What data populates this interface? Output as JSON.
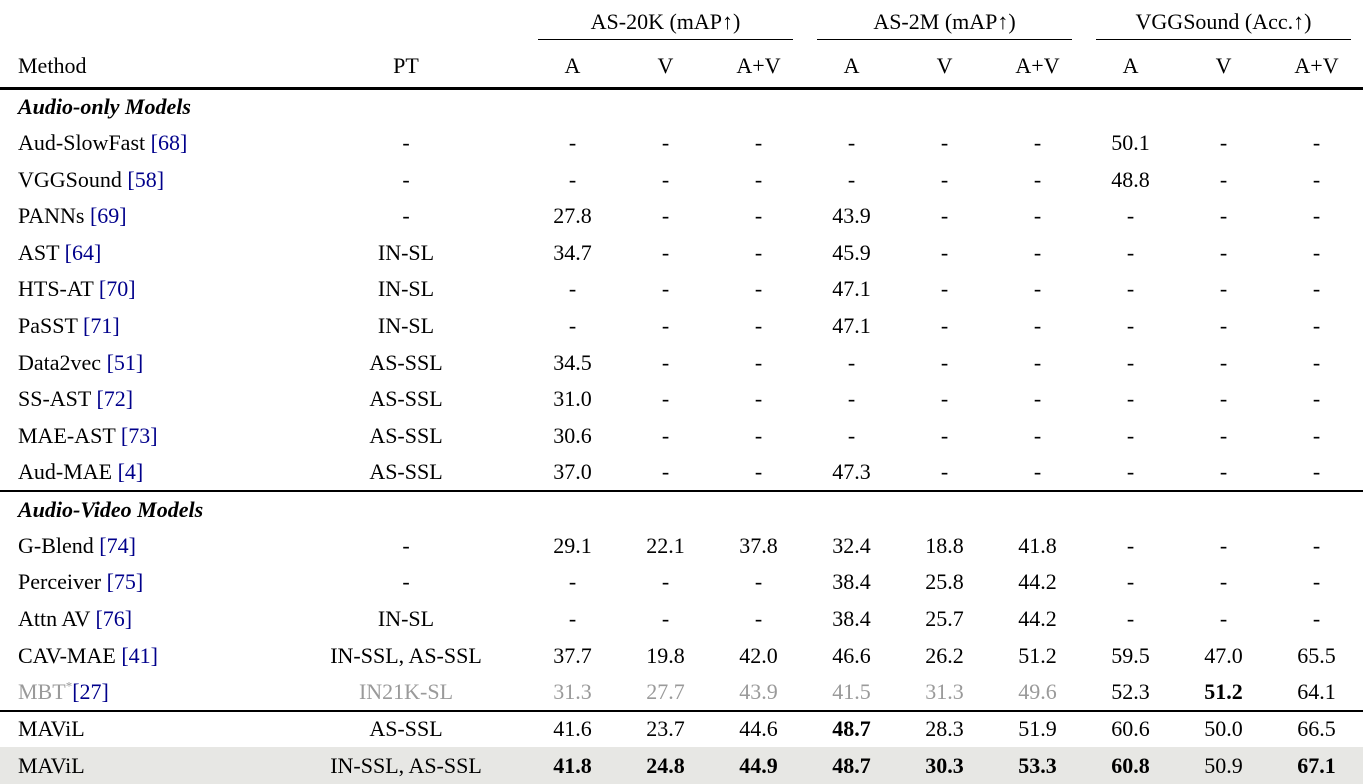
{
  "colors": {
    "cite": "#00008B",
    "muted": "#9a9a9a",
    "highlight_bg": "#e7e7e4"
  },
  "header": {
    "groups": [
      "AS-20K (mAP↑)",
      "AS-2M (mAP↑)",
      "VGGSound (Acc.↑)"
    ],
    "method": "Method",
    "pt": "PT",
    "subcols": [
      "A",
      "V",
      "A+V",
      "A",
      "V",
      "A+V",
      "A",
      "V",
      "A+V"
    ]
  },
  "sections": [
    {
      "title": "Audio-only Models",
      "rows": [
        {
          "method": "Aud-SlowFast",
          "cite": "[68]",
          "pt": "-",
          "cells": [
            "-",
            "-",
            "-",
            "-",
            "-",
            "-",
            "50.1",
            "-",
            "-"
          ]
        },
        {
          "method": "VGGSound",
          "cite": "[58]",
          "pt": "-",
          "cells": [
            "-",
            "-",
            "-",
            "-",
            "-",
            "-",
            "48.8",
            "-",
            "-"
          ]
        },
        {
          "method": "PANNs",
          "cite": "[69]",
          "pt": "-",
          "cells": [
            "27.8",
            "-",
            "-",
            "43.9",
            "-",
            "-",
            "-",
            "-",
            "-"
          ]
        },
        {
          "method": "AST",
          "cite": "[64]",
          "pt": "IN-SL",
          "cells": [
            "34.7",
            "-",
            "-",
            "45.9",
            "-",
            "-",
            "-",
            "-",
            "-"
          ]
        },
        {
          "method": "HTS-AT",
          "cite": "[70]",
          "pt": "IN-SL",
          "cells": [
            "-",
            "-",
            "-",
            "47.1",
            "-",
            "-",
            "-",
            "-",
            "-"
          ]
        },
        {
          "method": "PaSST",
          "cite": "[71]",
          "pt": "IN-SL",
          "cells": [
            "-",
            "-",
            "-",
            "47.1",
            "-",
            "-",
            "-",
            "-",
            "-"
          ]
        },
        {
          "method": "Data2vec",
          "cite": "[51]",
          "pt": "AS-SSL",
          "cells": [
            "34.5",
            "-",
            "-",
            "-",
            "-",
            "-",
            "-",
            "-",
            "-"
          ]
        },
        {
          "method": "SS-AST",
          "cite": "[72]",
          "pt": "AS-SSL",
          "cells": [
            "31.0",
            "-",
            "-",
            "-",
            "-",
            "-",
            "-",
            "-",
            "-"
          ]
        },
        {
          "method": "MAE-AST",
          "cite": "[73]",
          "pt": "AS-SSL",
          "cells": [
            "30.6",
            "-",
            "-",
            "-",
            "-",
            "-",
            "-",
            "-",
            "-"
          ]
        },
        {
          "method": "Aud-MAE",
          "cite": "[4]",
          "pt": "AS-SSL",
          "cells": [
            "37.0",
            "-",
            "-",
            "47.3",
            "-",
            "-",
            "-",
            "-",
            "-"
          ]
        }
      ]
    },
    {
      "title": "Audio-Video Models",
      "rows": [
        {
          "method": "G-Blend",
          "cite": "[74]",
          "pt": "-",
          "cells": [
            "29.1",
            "22.1",
            "37.8",
            "32.4",
            "18.8",
            "41.8",
            "-",
            "-",
            "-"
          ]
        },
        {
          "method": "Perceiver",
          "cite": "[75]",
          "pt": "-",
          "cells": [
            "-",
            "-",
            "-",
            "38.4",
            "25.8",
            "44.2",
            "-",
            "-",
            "-"
          ]
        },
        {
          "method": "Attn AV",
          "cite": "[76]",
          "pt": "IN-SL",
          "cells": [
            "-",
            "-",
            "-",
            "38.4",
            "25.7",
            "44.2",
            "-",
            "-",
            "-"
          ]
        },
        {
          "method": "CAV-MAE",
          "cite": "[41]",
          "pt": "IN-SSL, AS-SSL",
          "cells": [
            "37.7",
            "19.8",
            "42.0",
            "46.6",
            "26.2",
            "51.2",
            "59.5",
            "47.0",
            "65.5"
          ]
        },
        {
          "method": "MBT",
          "sup": "*",
          "cite": "[27]",
          "muted": true,
          "pt": "IN21K-SL",
          "cells": [
            {
              "v": "31.3",
              "muted": true
            },
            {
              "v": "27.7",
              "muted": true
            },
            {
              "v": "43.9",
              "muted": true
            },
            {
              "v": "41.5",
              "muted": true
            },
            {
              "v": "31.3",
              "muted": true
            },
            {
              "v": "49.6",
              "muted": true
            },
            {
              "v": "52.3"
            },
            {
              "v": "51.2",
              "bold": true
            },
            {
              "v": "64.1"
            }
          ]
        }
      ]
    },
    {
      "title": null,
      "rows": [
        {
          "method": "MAViL",
          "cite": null,
          "pt": "AS-SSL",
          "cells": [
            "41.6",
            "23.7",
            "44.6",
            {
              "v": "48.7",
              "bold": true
            },
            "28.3",
            "51.9",
            "60.6",
            "50.0",
            "66.5"
          ]
        },
        {
          "method": "MAViL",
          "cite": null,
          "pt": "IN-SSL, AS-SSL",
          "highlight": true,
          "cells": [
            {
              "v": "41.8",
              "bold": true
            },
            {
              "v": "24.8",
              "bold": true
            },
            {
              "v": "44.9",
              "bold": true
            },
            {
              "v": "48.7",
              "bold": true
            },
            {
              "v": "30.3",
              "bold": true
            },
            {
              "v": "53.3",
              "bold": true
            },
            {
              "v": "60.8",
              "bold": true
            },
            {
              "v": "50.9"
            },
            {
              "v": "67.1",
              "bold": true
            }
          ]
        }
      ]
    }
  ]
}
